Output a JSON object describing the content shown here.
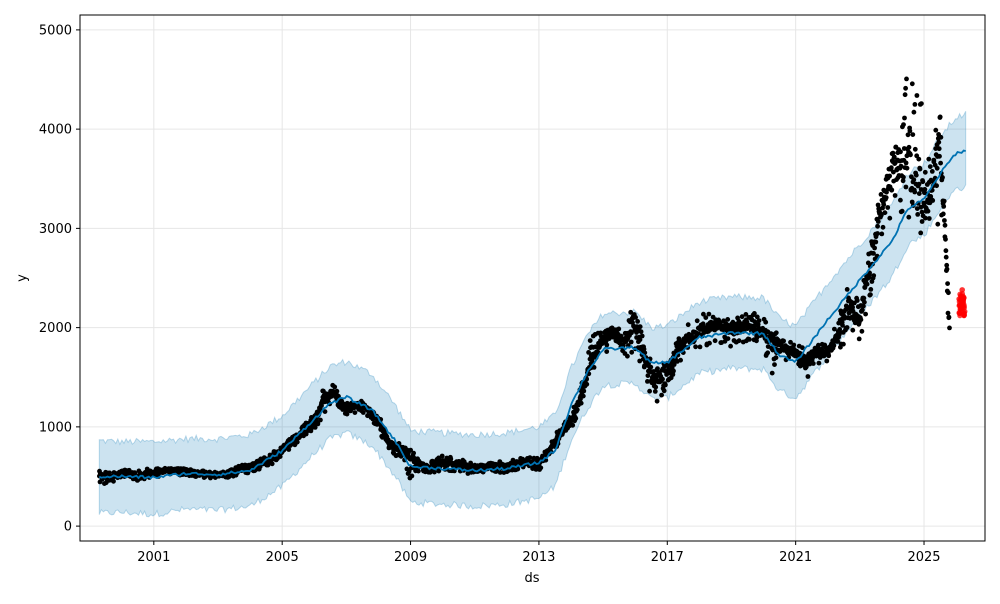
{
  "chart_data": {
    "type": "line",
    "title": "",
    "xlabel": "ds",
    "ylabel": "y",
    "xlim": [
      1998.7,
      2026.9
    ],
    "ylim": [
      -150,
      5150
    ],
    "x_ticks": [
      2001,
      2005,
      2009,
      2013,
      2017,
      2021,
      2025
    ],
    "y_ticks": [
      0,
      1000,
      2000,
      3000,
      4000,
      5000
    ],
    "x_tick_labels": [
      "2001",
      "2005",
      "2009",
      "2013",
      "2017",
      "2021",
      "2025"
    ],
    "y_tick_labels": [
      "0",
      "1000",
      "2000",
      "3000",
      "4000",
      "5000"
    ],
    "grid": true,
    "colors": {
      "forecast_line": "#0072b2",
      "interval_fill": "#0072b2",
      "observed_points": "#000000",
      "highlighted_points": "#ff0000"
    },
    "forecast": {
      "x": [
        1999.3,
        2000,
        2001,
        2002,
        2003,
        2004,
        2005,
        2006,
        2006.5,
        2007,
        2007.8,
        2008.5,
        2009,
        2010,
        2011,
        2012,
        2013,
        2013.5,
        2014,
        2014.5,
        2015,
        2016,
        2016.5,
        2017,
        2018,
        2019,
        2020,
        2020.5,
        2021,
        2022,
        2023,
        2024,
        2024.5,
        2025,
        2025.5,
        2026,
        2026.3
      ],
      "yhat": [
        500,
        500,
        490,
        530,
        520,
        560,
        760,
        1080,
        1240,
        1300,
        1170,
        870,
        600,
        580,
        560,
        580,
        640,
        760,
        1220,
        1550,
        1780,
        1800,
        1640,
        1650,
        1900,
        1950,
        1940,
        1720,
        1650,
        2080,
        2480,
        2870,
        3200,
        3290,
        3550,
        3760,
        3780
      ],
      "upper": [
        860,
        850,
        850,
        880,
        880,
        920,
        1110,
        1450,
        1610,
        1660,
        1530,
        1230,
        960,
        940,
        920,
        940,
        1000,
        1120,
        1590,
        1920,
        2140,
        2160,
        2000,
        2020,
        2260,
        2310,
        2300,
        2090,
        2010,
        2450,
        2840,
        3240,
        3560,
        3650,
        3920,
        4120,
        4150
      ],
      "lower": [
        130,
        140,
        120,
        170,
        160,
        200,
        400,
        730,
        880,
        940,
        810,
        510,
        240,
        220,
        200,
        220,
        280,
        400,
        860,
        1180,
        1420,
        1440,
        1280,
        1290,
        1540,
        1590,
        1580,
        1360,
        1290,
        1720,
        2120,
        2510,
        2840,
        2930,
        3190,
        3400,
        3420
      ]
    },
    "observed": {
      "x": [
        1999.3,
        1999.6,
        2000,
        2000.5,
        2001,
        2001.5,
        2002,
        2002.5,
        2003,
        2003.5,
        2004,
        2004.5,
        2005,
        2005.5,
        2006,
        2006.3,
        2006.6,
        2007,
        2007.3,
        2007.6,
        2008,
        2008.3,
        2008.6,
        2009,
        2009.3,
        2009.6,
        2010,
        2010.5,
        2011,
        2011.5,
        2012,
        2012.5,
        2013,
        2013.3,
        2013.6,
        2014,
        2014.3,
        2014.6,
        2015,
        2015.3,
        2015.6,
        2016,
        2016.3,
        2016.6,
        2016.9,
        2017.2,
        2017.5,
        2018,
        2018.3,
        2018.6,
        2019,
        2019.3,
        2019.6,
        2020,
        2020.3,
        2020.6,
        2021,
        2021.3,
        2021.6,
        2022,
        2022.3,
        2022.6,
        2023,
        2023.3,
        2023.6,
        2024,
        2024.3,
        2024.6,
        2024.8,
        2025,
        2025.2,
        2025.5,
        2025.8
      ],
      "y": [
        520,
        480,
        540,
        500,
        530,
        570,
        560,
        530,
        510,
        560,
        600,
        650,
        760,
        900,
        1050,
        1280,
        1350,
        1180,
        1220,
        1200,
        1080,
        850,
        780,
        720,
        620,
        580,
        650,
        620,
        560,
        610,
        600,
        640,
        620,
        760,
        900,
        1050,
        1280,
        1650,
        1900,
        1950,
        1850,
        2050,
        1700,
        1450,
        1550,
        1700,
        1850,
        1950,
        2000,
        2050,
        1980,
        2000,
        2050,
        1950,
        1850,
        1800,
        1750,
        1650,
        1750,
        1750,
        1900,
        2200,
        2100,
        2600,
        3100,
        3600,
        3650,
        3700,
        3500,
        3200,
        3400,
        3950,
        1950
      ],
      "max": [
        560,
        540,
        580,
        560,
        590,
        590,
        580,
        560,
        540,
        590,
        640,
        700,
        810,
        960,
        1130,
        1400,
        1430,
        1250,
        1270,
        1250,
        1130,
        900,
        840,
        780,
        680,
        640,
        720,
        690,
        620,
        670,
        660,
        700,
        690,
        830,
        980,
        1130,
        1410,
        1880,
        2040,
        2080,
        2020,
        2280,
        1810,
        1590,
        1650,
        1800,
        2000,
        2150,
        2140,
        2180,
        2120,
        2100,
        2230,
        2100,
        2000,
        1880,
        1850,
        1790,
        1840,
        1830,
        2060,
        2390,
        2300,
        2780,
        3320,
        4000,
        4100,
        4900,
        4480,
        4180,
        3760,
        4190,
        2100
      ],
      "min": [
        410,
        440,
        470,
        460,
        490,
        520,
        510,
        490,
        470,
        500,
        540,
        590,
        690,
        850,
        980,
        1110,
        1280,
        1090,
        1150,
        1130,
        970,
        780,
        690,
        470,
        540,
        530,
        560,
        550,
        500,
        540,
        540,
        580,
        560,
        680,
        820,
        980,
        1160,
        1520,
        1720,
        1780,
        1740,
        1600,
        1490,
        1200,
        1350,
        1540,
        1700,
        1800,
        1800,
        1860,
        1790,
        1830,
        1840,
        1780,
        1500,
        1680,
        1650,
        1440,
        1620,
        1660,
        1780,
        1850,
        1850,
        2280,
        2800,
        3100,
        3150,
        3050,
        2690,
        3050,
        3070,
        3000,
        1920
      ]
    },
    "highlighted": {
      "x": [
        2026.1,
        2026.13,
        2026.16,
        2026.19,
        2026.22,
        2026.25
      ],
      "y": [
        2150,
        2220,
        2310,
        2380,
        2260,
        2200
      ]
    }
  }
}
